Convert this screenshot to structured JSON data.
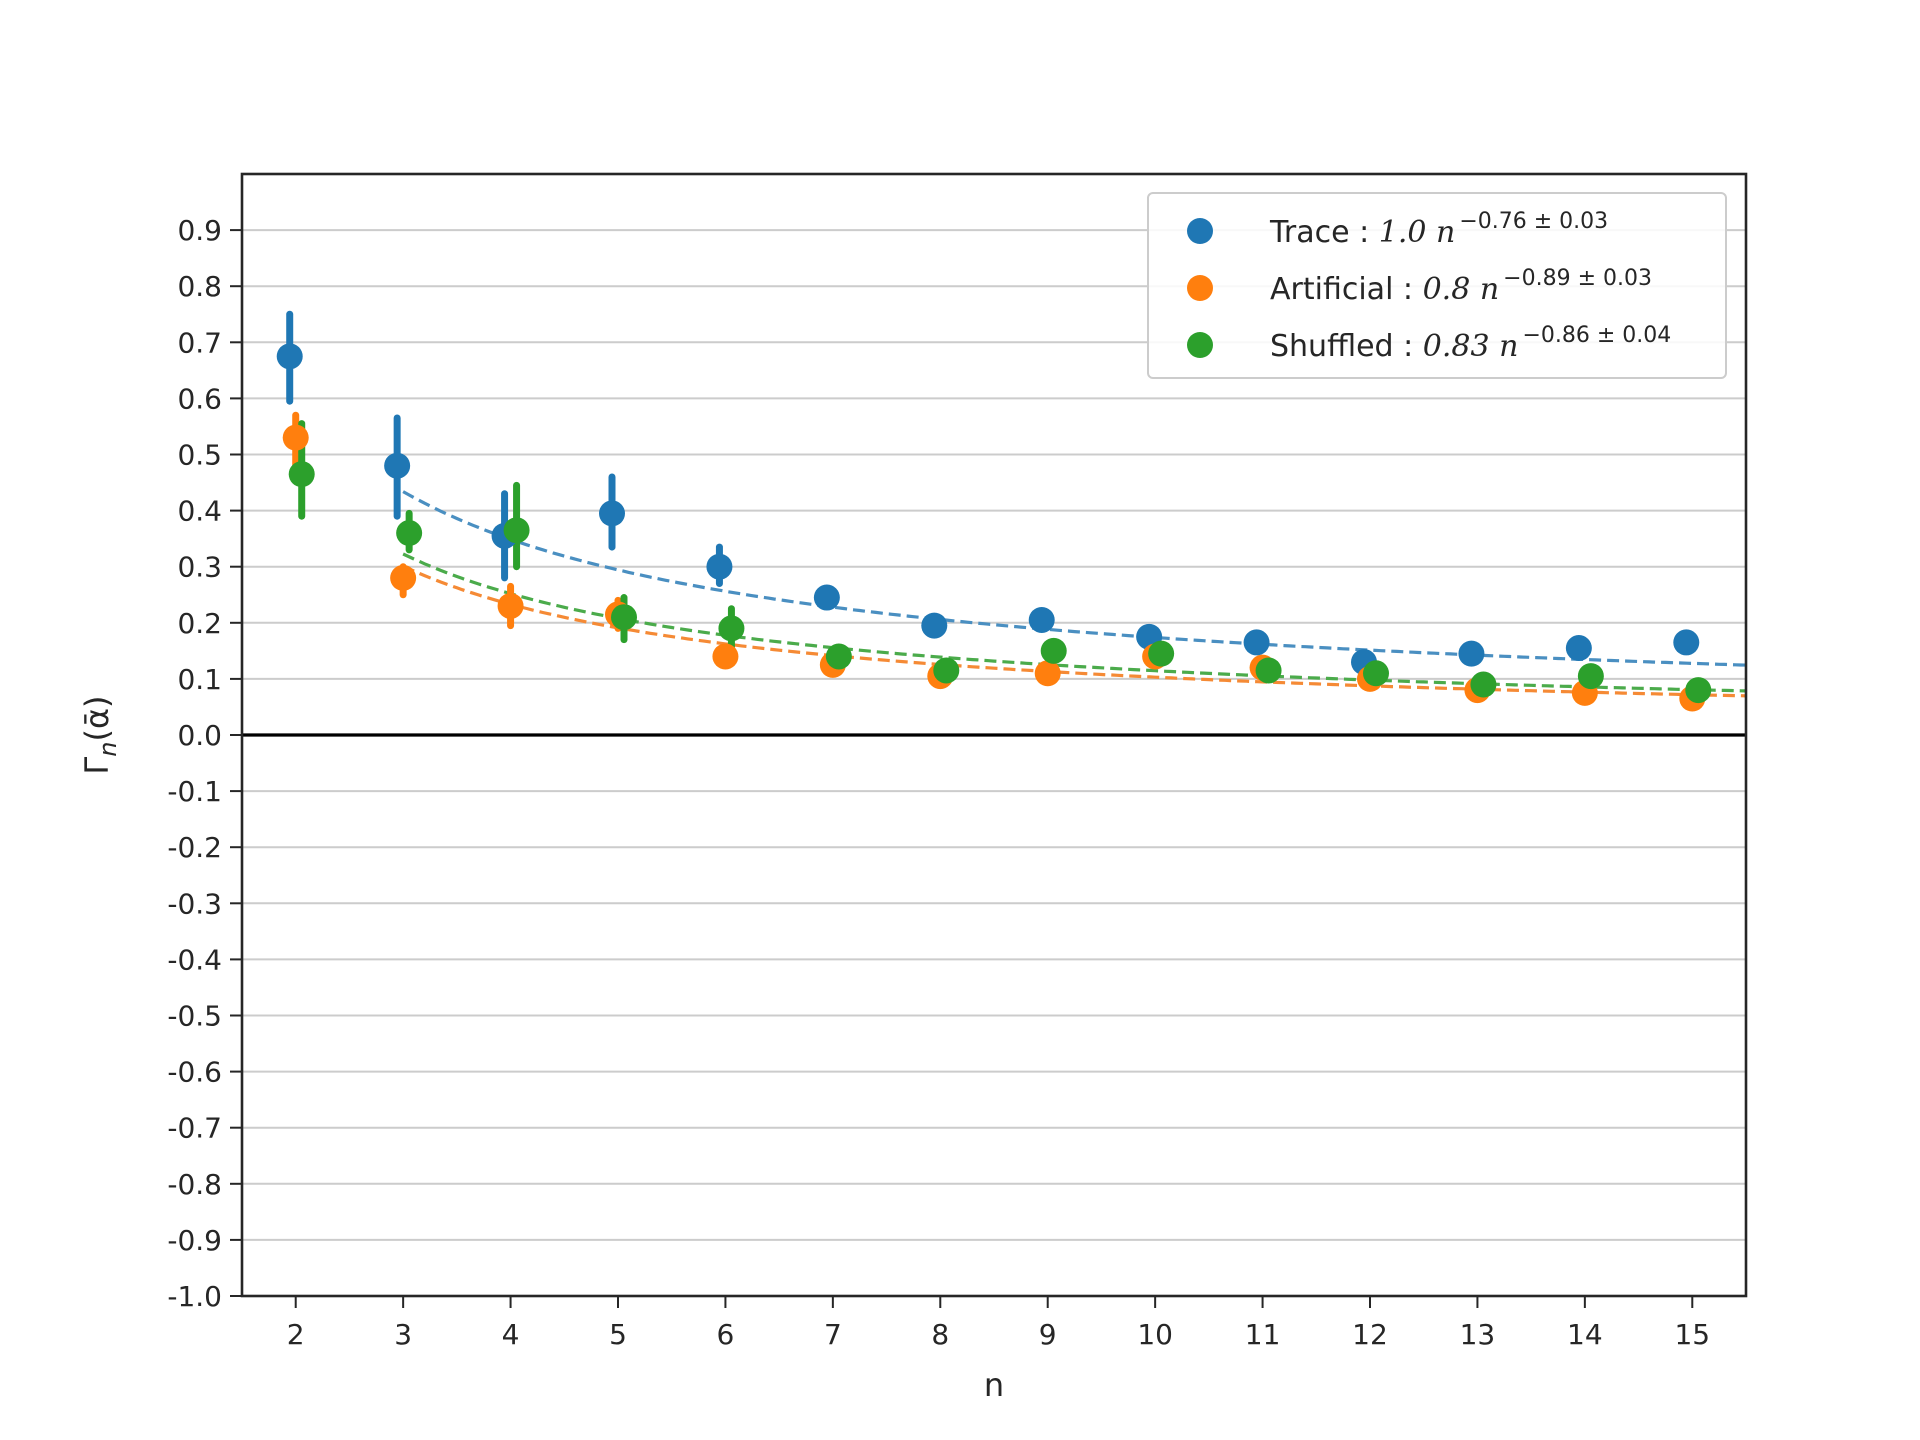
{
  "chart_data": {
    "type": "scatter",
    "xlabel": "n",
    "ylabel": "Γn(ᾱ)",
    "ylabel_main": "Γ",
    "ylabel_sub": "n",
    "ylabel_arg": "(ᾱ)",
    "xlim": [
      1.5,
      15.5
    ],
    "ylim": [
      -1.0,
      1.0
    ],
    "x_ticks": [
      2,
      3,
      4,
      5,
      6,
      7,
      8,
      9,
      10,
      11,
      12,
      13,
      14,
      15
    ],
    "y_ticks": [
      -1.0,
      -0.9,
      -0.8,
      -0.7,
      -0.6,
      -0.5,
      -0.4,
      -0.3,
      -0.2,
      -0.1,
      0.0,
      0.1,
      0.2,
      0.3,
      0.4,
      0.5,
      0.6,
      0.7,
      0.8,
      0.9
    ],
    "y_tick_labels": [
      "-1.0",
      "-0.9",
      "-0.8",
      "-0.7",
      "-0.6",
      "-0.5",
      "-0.4",
      "-0.3",
      "-0.2",
      "-0.1",
      "0.0",
      "0.1",
      "0.2",
      "0.3",
      "0.4",
      "0.5",
      "0.6",
      "0.7",
      "0.8",
      "0.9"
    ],
    "grid": "horizontal",
    "zero_line": true,
    "legend_position": "top-right",
    "series": [
      {
        "name": "Trace",
        "legend_label": "Trace :",
        "coef": "1.0",
        "exponent": "−0.76 ± 0.03",
        "color": "#1f77b4",
        "fit_color": "#4a8fc1",
        "x": [
          2,
          3,
          4,
          5,
          6,
          7,
          8,
          9,
          10,
          11,
          12,
          13,
          14,
          15
        ],
        "y": [
          0.675,
          0.48,
          0.355,
          0.395,
          0.3,
          0.245,
          0.195,
          0.205,
          0.175,
          0.165,
          0.13,
          0.145,
          0.155,
          0.165
        ],
        "err_low": [
          0.595,
          0.39,
          0.28,
          0.335,
          0.27,
          null,
          null,
          null,
          null,
          null,
          null,
          null,
          null,
          null
        ],
        "err_high": [
          0.75,
          0.565,
          0.43,
          0.46,
          0.335,
          null,
          null,
          null,
          null,
          null,
          null,
          null,
          null,
          null
        ],
        "fit": {
          "a": 1.0,
          "b": 0.76,
          "x_start": 3
        }
      },
      {
        "name": "Artificial",
        "legend_label": "Artificial :",
        "coef": "0.8",
        "exponent": "−0.89 ± 0.03",
        "color": "#ff7f0e",
        "fit_color": "#f58a35",
        "x": [
          2,
          3,
          4,
          5,
          6,
          7,
          8,
          9,
          10,
          11,
          12,
          13,
          14,
          15
        ],
        "y": [
          0.53,
          0.28,
          0.23,
          0.215,
          0.14,
          0.125,
          0.105,
          0.11,
          0.14,
          0.12,
          0.1,
          0.08,
          0.075,
          0.065
        ],
        "err_low": [
          0.47,
          0.25,
          0.195,
          0.19,
          null,
          null,
          null,
          null,
          null,
          null,
          null,
          null,
          null,
          null
        ],
        "err_high": [
          0.57,
          0.3,
          0.265,
          0.24,
          null,
          null,
          null,
          null,
          null,
          null,
          null,
          null,
          null,
          null
        ],
        "fit": {
          "a": 0.8,
          "b": 0.89,
          "x_start": 3
        }
      },
      {
        "name": "Shuffled",
        "legend_label": "Shuffled :",
        "coef": "0.83",
        "exponent": "−0.86 ± 0.04",
        "color": "#2ca02c",
        "fit_color": "#4bab4b",
        "x": [
          2,
          3,
          4,
          5,
          6,
          7,
          8,
          9,
          10,
          11,
          12,
          13,
          14,
          15
        ],
        "y": [
          0.465,
          0.36,
          0.365,
          0.21,
          0.19,
          0.14,
          0.115,
          0.15,
          0.145,
          0.115,
          0.11,
          0.09,
          0.105,
          0.08
        ],
        "err_low": [
          0.39,
          0.33,
          0.3,
          0.17,
          0.155,
          null,
          null,
          null,
          null,
          null,
          null,
          null,
          null,
          null
        ],
        "err_high": [
          0.555,
          0.395,
          0.445,
          0.245,
          0.225,
          null,
          null,
          null,
          null,
          null,
          null,
          null,
          null,
          null
        ],
        "fit": {
          "a": 0.83,
          "b": 0.86,
          "x_start": 3
        }
      }
    ]
  }
}
